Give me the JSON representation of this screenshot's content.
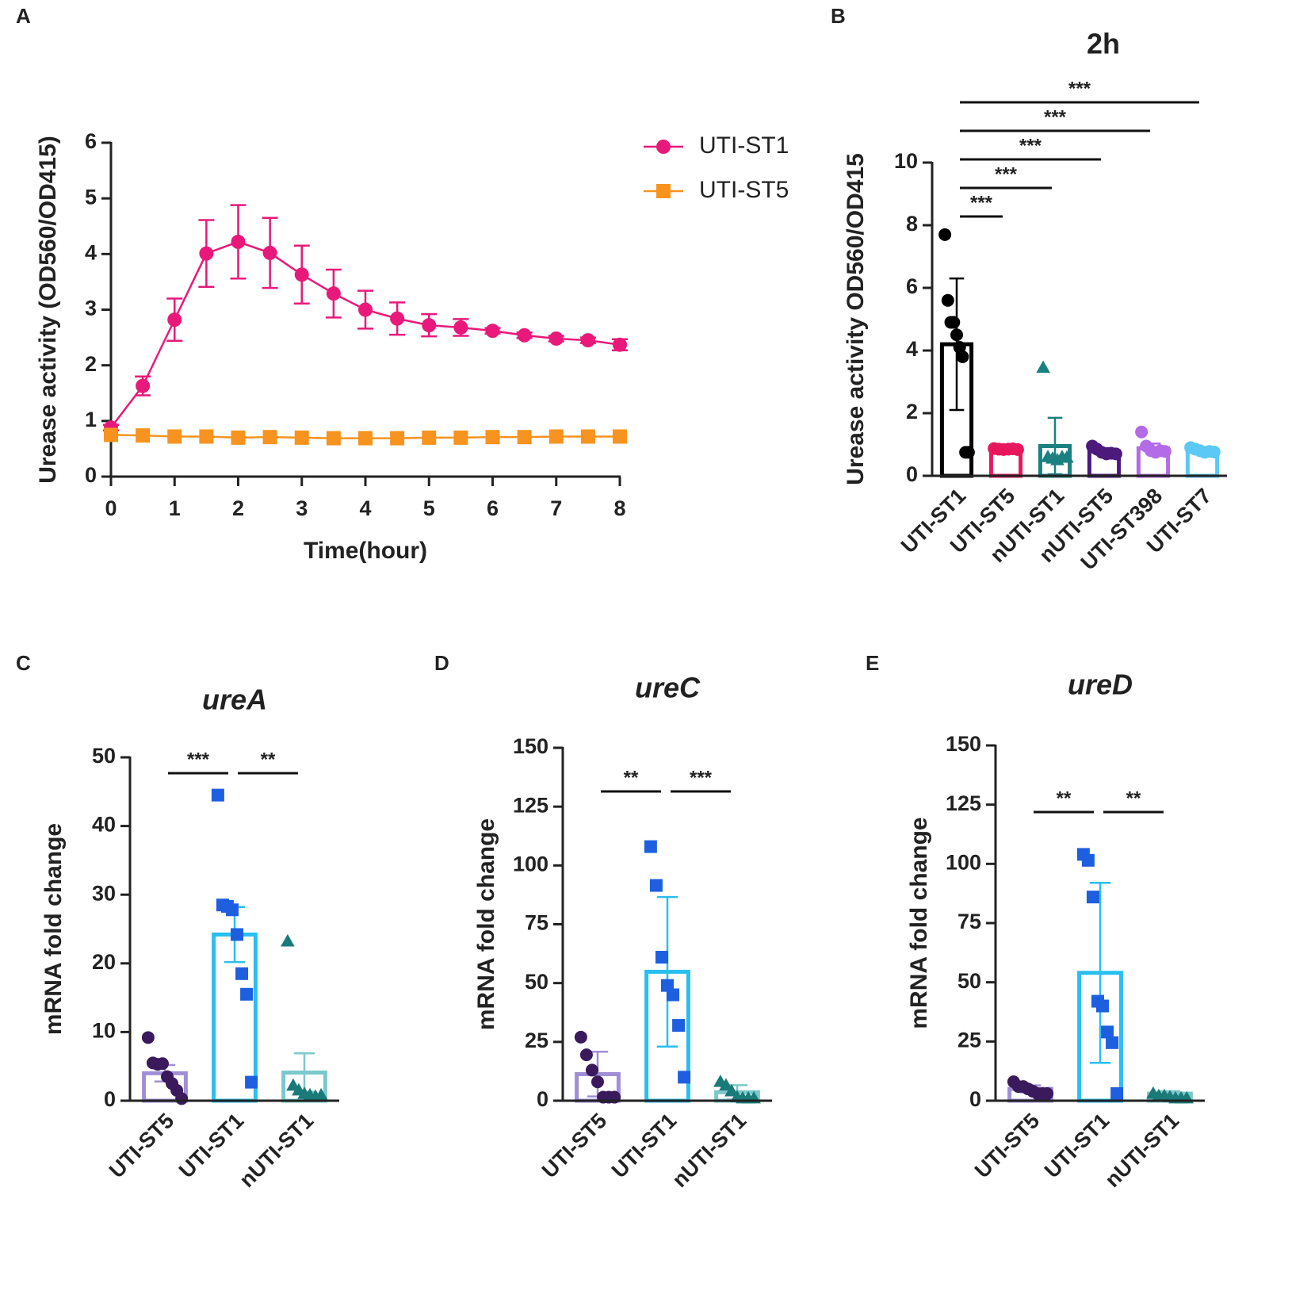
{
  "chart_data": [
    {
      "type": "line",
      "panel": "A",
      "x": [
        0,
        0.5,
        1,
        1.5,
        2,
        2.5,
        3,
        3.5,
        4,
        4.5,
        5,
        5.5,
        6,
        6.5,
        7,
        7.5,
        8
      ],
      "series": [
        {
          "name": "UTI-ST1",
          "color": "#e8197a",
          "marker": "circle",
          "values": [
            0.88,
            1.63,
            2.82,
            4.01,
            4.22,
            4.02,
            3.63,
            3.29,
            3.0,
            2.84,
            2.72,
            2.68,
            2.62,
            2.54,
            2.48,
            2.45,
            2.37
          ],
          "errors": [
            0.05,
            0.17,
            0.38,
            0.6,
            0.66,
            0.63,
            0.52,
            0.43,
            0.34,
            0.29,
            0.2,
            0.15,
            0.05,
            0.05,
            0.05,
            0.05,
            0.1
          ]
        },
        {
          "name": "UTI-ST5",
          "color": "#f7931e",
          "marker": "square",
          "values": [
            0.75,
            0.74,
            0.72,
            0.72,
            0.7,
            0.71,
            0.7,
            0.69,
            0.69,
            0.69,
            0.7,
            0.7,
            0.71,
            0.71,
            0.72,
            0.72,
            0.72
          ]
        }
      ],
      "xlabel": "Time(hour)",
      "ylabel": "Urease activity (OD560/OD415)",
      "xlim": [
        0,
        8
      ],
      "xticks": [
        0,
        1,
        2,
        3,
        4,
        5,
        6,
        7,
        8
      ],
      "ylim": [
        0,
        6
      ],
      "yticks": [
        0,
        1,
        2,
        3,
        4,
        5,
        6
      ],
      "legend": "outside-right"
    },
    {
      "type": "bar",
      "panel": "B",
      "title": "2h",
      "categories": [
        "UTI-ST1",
        "UTI-ST5",
        "nUTI-ST1",
        "nUTI-ST5",
        "UTI-ST398",
        "UTI-ST7"
      ],
      "values": [
        4.2,
        0.85,
        0.95,
        0.78,
        0.88,
        0.8
      ],
      "errors": [
        2.1,
        0.02,
        0.9,
        0.1,
        0.15,
        0.07
      ],
      "colors": [
        "#000000",
        "#e8175d",
        "#1a8080",
        "#4b1a7a",
        "#b36be8",
        "#5bc8f5"
      ],
      "point_colors": [
        "#000000",
        "#e8175d",
        "#1a8080",
        "#4b1a7a",
        "#b36be8",
        "#5bc8f5"
      ],
      "markers": [
        "circle",
        "circle",
        "triangle",
        "circle",
        "circle",
        "circle"
      ],
      "points": [
        [
          7.7,
          5.6,
          4.9,
          4.9,
          4.5,
          4.1,
          3.8,
          0.75,
          0.75
        ],
        [
          0.87,
          0.85,
          0.84,
          0.85,
          0.86,
          0.84
        ],
        [
          3.45,
          0.6,
          0.55,
          0.5,
          0.6,
          0.58
        ],
        [
          0.95,
          0.85,
          0.75,
          0.7,
          0.72,
          0.7
        ],
        [
          1.4,
          0.95,
          0.8,
          0.75,
          0.8,
          0.78
        ],
        [
          0.9,
          0.85,
          0.8,
          0.75,
          0.78,
          0.76
        ]
      ],
      "ylabel": "Urease activity OD560/OD415",
      "ylim": [
        0,
        10
      ],
      "yticks": [
        0,
        2,
        4,
        6,
        8,
        10
      ],
      "annotations": [
        {
          "text": "***",
          "from": 0,
          "to": 1
        },
        {
          "text": "***",
          "from": 0,
          "to": 2
        },
        {
          "text": "***",
          "from": 0,
          "to": 3
        },
        {
          "text": "***",
          "from": 0,
          "to": 4
        },
        {
          "text": "***",
          "from": 0,
          "to": 5
        }
      ]
    },
    {
      "type": "bar",
      "panel": "C",
      "title": "ureA",
      "categories": [
        "UTI-ST5",
        "UTI-ST1",
        "nUTI-ST1"
      ],
      "values": [
        4.0,
        24.2,
        4.1
      ],
      "errors": [
        1.2,
        4.0,
        2.8
      ],
      "colors": [
        "#a08fd6",
        "#29bff0",
        "#7cc8cc"
      ],
      "point_colors": [
        "#3a1a5c",
        "#1e5fe0",
        "#1a7a7a"
      ],
      "markers": [
        "circle",
        "square",
        "triangle"
      ],
      "points": [
        [
          9.2,
          5.5,
          5.3,
          5.4,
          3.5,
          2.5,
          1.5,
          0.3
        ],
        [
          44.5,
          28.5,
          28.3,
          27.8,
          24.2,
          18.5,
          15.5,
          2.7
        ],
        [
          23.2,
          2.2,
          1.5,
          1.0,
          0.8,
          0.6,
          0.8
        ]
      ],
      "ylabel": "mRNA fold change",
      "ylim": [
        0,
        50
      ],
      "yticks": [
        0,
        10,
        20,
        30,
        40,
        50
      ],
      "annotations": [
        {
          "text": "***",
          "from": 0,
          "to": 1
        },
        {
          "text": "**",
          "from": 1,
          "to": 2
        }
      ]
    },
    {
      "type": "bar",
      "panel": "D",
      "title": "ureC",
      "categories": [
        "UTI-ST5",
        "UTI-ST1",
        "nUTI-ST1"
      ],
      "values": [
        11.3,
        54.8,
        3.6
      ],
      "errors": [
        9.5,
        31.8,
        3.0
      ],
      "colors": [
        "#a08fd6",
        "#29bff0",
        "#7cc8cc"
      ],
      "point_colors": [
        "#3a1a5c",
        "#1e5fe0",
        "#1a7a7a"
      ],
      "markers": [
        "circle",
        "square",
        "triangle"
      ],
      "points": [
        [
          27,
          19.5,
          13,
          8,
          1.5,
          1.5,
          1.5
        ],
        [
          108,
          91.5,
          61,
          49,
          45,
          32,
          10
        ],
        [
          8,
          6.5,
          4,
          1.5,
          1,
          1,
          1
        ]
      ],
      "ylabel": "mRNA fold change",
      "ylim": [
        0,
        150
      ],
      "yticks": [
        0,
        25,
        50,
        75,
        100,
        125,
        150
      ],
      "annotations": [
        {
          "text": "**",
          "from": 0,
          "to": 1
        },
        {
          "text": "***",
          "from": 1,
          "to": 2
        }
      ]
    },
    {
      "type": "bar",
      "panel": "E",
      "title": "ureD",
      "categories": [
        "UTI-ST5",
        "UTI-ST1",
        "nUTI-ST1"
      ],
      "values": [
        5.0,
        54.0,
        3.0
      ],
      "errors": [
        1.5,
        38.0,
        1.0
      ],
      "colors": [
        "#a08fd6",
        "#29bff0",
        "#7cc8cc"
      ],
      "point_colors": [
        "#3a1a5c",
        "#1e5fe0",
        "#1a7a7a"
      ],
      "markers": [
        "circle",
        "square",
        "triangle"
      ],
      "points": [
        [
          8,
          6,
          6,
          5,
          4,
          3,
          3,
          3
        ],
        [
          104,
          101.5,
          86,
          42,
          40,
          29,
          24.5,
          3
        ],
        [
          3,
          2,
          2,
          1.5,
          1,
          1,
          1
        ]
      ],
      "ylabel": "mRNA fold change",
      "ylim": [
        0,
        150
      ],
      "yticks": [
        0,
        25,
        50,
        75,
        100,
        125,
        150
      ],
      "annotations": [
        {
          "text": "**",
          "from": 0,
          "to": 1
        },
        {
          "text": "**",
          "from": 1,
          "to": 2
        }
      ]
    }
  ]
}
